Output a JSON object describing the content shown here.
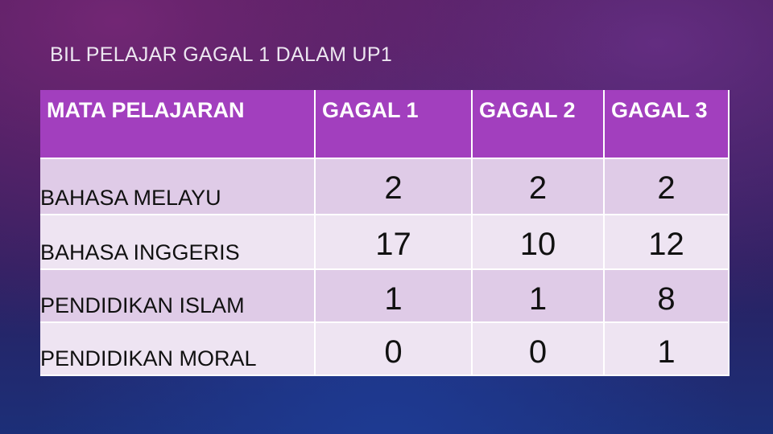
{
  "title": "BIL PELAJAR GAGAL 1 DALAM UP1",
  "table": {
    "header": [
      "MATA PELAJARAN",
      "GAGAL 1",
      "GAGAL 2",
      "GAGAL 3"
    ],
    "rows": [
      [
        "BAHASA MELAYU",
        2,
        2,
        2
      ],
      [
        "BAHASA INGGERIS",
        17,
        10,
        12
      ],
      [
        "PENDIDIKAN ISLAM",
        1,
        1,
        8
      ],
      [
        "PENDIDIKAN MORAL",
        0,
        0,
        1
      ]
    ]
  }
}
